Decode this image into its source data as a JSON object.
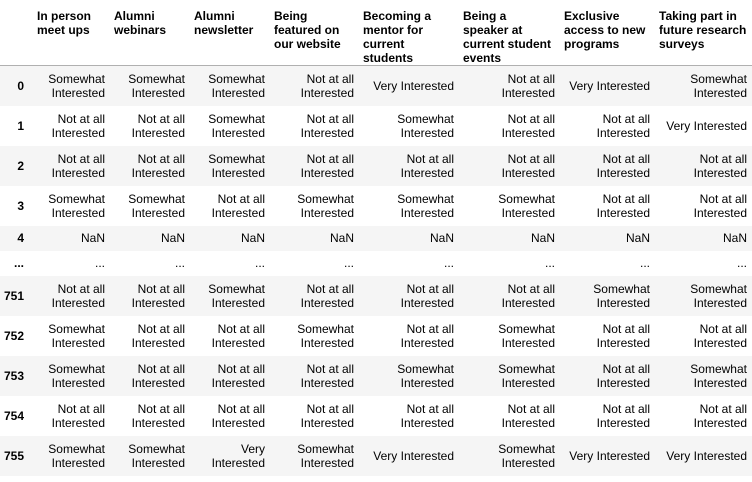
{
  "columns": [
    "In person meet ups",
    "Alumni webinars",
    "Alumni newsletter",
    "Being featured on our website",
    "Becoming a mentor for current students",
    "Being a speaker at current student events",
    "Exclusive access to new programs",
    "Taking part in future research surveys"
  ],
  "rows": [
    {
      "index": "0",
      "cells": [
        "Somewhat Interested",
        "Somewhat Interested",
        "Somewhat Interested",
        "Not at all Interested",
        "Very Interested",
        "Not at all Interested",
        "Very Interested",
        "Somewhat Interested"
      ]
    },
    {
      "index": "1",
      "cells": [
        "Not at all Interested",
        "Not at all Interested",
        "Somewhat Interested",
        "Not at all Interested",
        "Somewhat Interested",
        "Not at all Interested",
        "Not at all Interested",
        "Very Interested"
      ]
    },
    {
      "index": "2",
      "cells": [
        "Not at all Interested",
        "Not at all Interested",
        "Somewhat Interested",
        "Not at all Interested",
        "Not at all Interested",
        "Not at all Interested",
        "Not at all Interested",
        "Not at all Interested"
      ]
    },
    {
      "index": "3",
      "cells": [
        "Somewhat Interested",
        "Somewhat Interested",
        "Not at all Interested",
        "Somewhat Interested",
        "Somewhat Interested",
        "Somewhat Interested",
        "Not at all Interested",
        "Not at all Interested"
      ]
    },
    {
      "index": "4",
      "cells": [
        "NaN",
        "NaN",
        "NaN",
        "NaN",
        "NaN",
        "NaN",
        "NaN",
        "NaN"
      ]
    },
    {
      "index": "...",
      "cells": [
        "...",
        "...",
        "...",
        "...",
        "...",
        "...",
        "...",
        "..."
      ]
    },
    {
      "index": "751",
      "cells": [
        "Not at all Interested",
        "Not at all Interested",
        "Somewhat Interested",
        "Not at all Interested",
        "Not at all Interested",
        "Not at all Interested",
        "Somewhat Interested",
        "Somewhat Interested"
      ]
    },
    {
      "index": "752",
      "cells": [
        "Somewhat Interested",
        "Not at all Interested",
        "Not at all Interested",
        "Somewhat Interested",
        "Not at all Interested",
        "Somewhat Interested",
        "Not at all Interested",
        "Not at all Interested"
      ]
    },
    {
      "index": "753",
      "cells": [
        "Somewhat Interested",
        "Not at all Interested",
        "Not at all Interested",
        "Not at all Interested",
        "Somewhat Interested",
        "Somewhat Interested",
        "Not at all Interested",
        "Somewhat Interested"
      ]
    },
    {
      "index": "754",
      "cells": [
        "Not at all Interested",
        "Not at all Interested",
        "Not at all Interested",
        "Not at all Interested",
        "Not at all Interested",
        "Not at all Interested",
        "Not at all Interested",
        "Not at all Interested"
      ]
    },
    {
      "index": "755",
      "cells": [
        "Somewhat Interested",
        "Somewhat Interested",
        "Very Interested",
        "Somewhat Interested",
        "Very Interested",
        "Somewhat Interested",
        "Very Interested",
        "Very Interested"
      ]
    }
  ]
}
